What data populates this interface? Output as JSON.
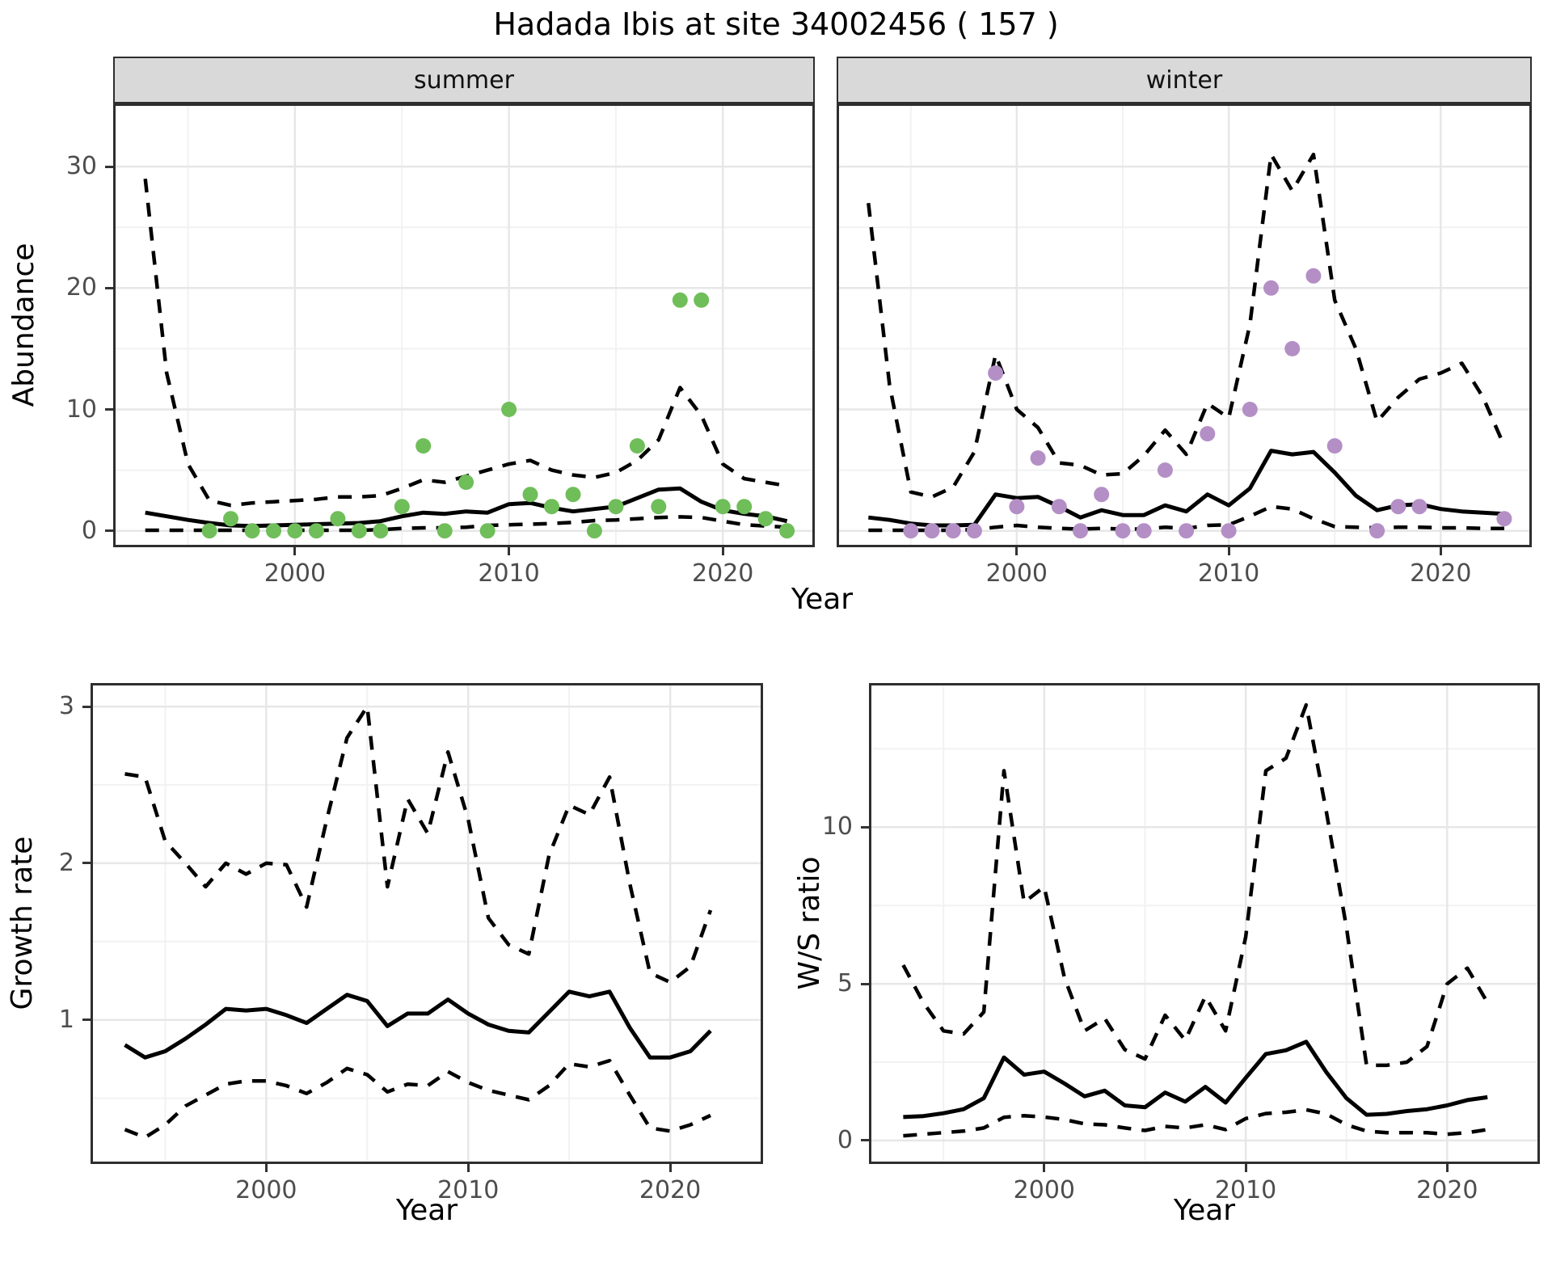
{
  "title": "Hadada Ibis at site 34002456 ( 157 )",
  "facets": [
    {
      "label": "summer"
    },
    {
      "label": "winter"
    }
  ],
  "axes": {
    "abundance_ylabel": "Abundance",
    "top_xlabel": "Year",
    "growth_ylabel": "Growth rate",
    "growth_xlabel": "Year",
    "ws_ylabel": "W/S ratio",
    "ws_xlabel": "Year"
  },
  "colors": {
    "summer_point": "#6FBE5A",
    "winter_point": "#B48FC6",
    "line": "#000000",
    "grid_major": "#E7E7E7",
    "grid_minor": "#F2F2F2",
    "strip_bg": "#D9D9D9",
    "panel_border": "#2E2E2E",
    "tick_text": "#4D4D4D"
  },
  "chart_data": [
    {
      "id": "abundance-summer",
      "type": "line",
      "facet": "summer",
      "xlabel": "Year",
      "ylabel": "Abundance",
      "xlim": [
        1991.5,
        2024.3
      ],
      "ylim": [
        -1.35,
        35.2
      ],
      "xticks": [
        2000,
        2010,
        2020
      ],
      "yticks": [
        0,
        10,
        20,
        30
      ],
      "xminor": [
        1995,
        2005,
        2015
      ],
      "yminor": [
        5,
        15,
        25
      ],
      "x": [
        1993,
        1994,
        1995,
        1996,
        1997,
        1998,
        1999,
        2000,
        2001,
        2002,
        2003,
        2004,
        2005,
        2006,
        2007,
        2008,
        2009,
        2010,
        2011,
        2012,
        2013,
        2014,
        2015,
        2016,
        2017,
        2018,
        2019,
        2020,
        2021,
        2022,
        2023
      ],
      "series": [
        {
          "name": "fit",
          "style": "solid",
          "values": [
            1.5,
            1.2,
            0.9,
            0.65,
            0.45,
            0.4,
            0.45,
            0.5,
            0.55,
            0.6,
            0.65,
            0.8,
            1.2,
            1.5,
            1.4,
            1.6,
            1.5,
            2.2,
            2.3,
            1.9,
            1.6,
            1.8,
            2.0,
            2.7,
            3.4,
            3.5,
            2.4,
            1.7,
            1.4,
            1.2,
            0.8
          ]
        },
        {
          "name": "upper_ci",
          "style": "dashed",
          "values": [
            29,
            13,
            5.5,
            2.5,
            2.1,
            2.3,
            2.4,
            2.5,
            2.6,
            2.8,
            2.8,
            2.9,
            3.5,
            4.2,
            4.0,
            4.5,
            5.0,
            5.5,
            5.8,
            5.0,
            4.6,
            4.4,
            4.8,
            5.8,
            7.5,
            11.8,
            9.5,
            5.5,
            4.3,
            4.0,
            3.7
          ]
        },
        {
          "name": "lower_ci",
          "style": "dashed",
          "values": [
            0.05,
            0.05,
            0.05,
            0.05,
            0.05,
            0.05,
            0.05,
            0.05,
            0.05,
            0.05,
            0.05,
            0.1,
            0.2,
            0.25,
            0.25,
            0.3,
            0.45,
            0.5,
            0.55,
            0.6,
            0.7,
            0.85,
            0.9,
            1.0,
            1.1,
            1.15,
            1.1,
            0.8,
            0.5,
            0.4,
            0.3
          ]
        }
      ],
      "points": [
        [
          1996,
          0
        ],
        [
          1997,
          1
        ],
        [
          1998,
          0
        ],
        [
          1999,
          0
        ],
        [
          2000,
          0
        ],
        [
          2001,
          0
        ],
        [
          2002,
          1
        ],
        [
          2003,
          0
        ],
        [
          2004,
          0
        ],
        [
          2005,
          2
        ],
        [
          2006,
          7
        ],
        [
          2007,
          0
        ],
        [
          2008,
          4
        ],
        [
          2009,
          0
        ],
        [
          2010,
          10
        ],
        [
          2011,
          3
        ],
        [
          2012,
          2
        ],
        [
          2013,
          3
        ],
        [
          2014,
          0
        ],
        [
          2015,
          2
        ],
        [
          2016,
          7
        ],
        [
          2017,
          2
        ],
        [
          2018,
          19
        ],
        [
          2019,
          19
        ],
        [
          2020,
          2
        ],
        [
          2021,
          2
        ],
        [
          2022,
          1
        ],
        [
          2023,
          0
        ]
      ],
      "point_color": "#6FBE5A"
    },
    {
      "id": "abundance-winter",
      "type": "line",
      "facet": "winter",
      "xlabel": "Year",
      "ylabel": "Abundance",
      "xlim": [
        1991.5,
        2024.3
      ],
      "ylim": [
        -1.35,
        35.2
      ],
      "xticks": [
        2000,
        2010,
        2020
      ],
      "yticks": [
        0,
        10,
        20,
        30
      ],
      "xminor": [
        1995,
        2005,
        2015
      ],
      "yminor": [
        5,
        15,
        25
      ],
      "x": [
        1993,
        1994,
        1995,
        1996,
        1997,
        1998,
        1999,
        2000,
        2001,
        2002,
        2003,
        2004,
        2005,
        2006,
        2007,
        2008,
        2009,
        2010,
        2011,
        2012,
        2013,
        2014,
        2015,
        2016,
        2017,
        2018,
        2019,
        2020,
        2021,
        2022,
        2023
      ],
      "series": [
        {
          "name": "fit",
          "style": "solid",
          "values": [
            1.1,
            0.9,
            0.6,
            0.45,
            0.45,
            0.5,
            3.0,
            2.7,
            2.8,
            2.0,
            1.1,
            1.7,
            1.3,
            1.3,
            2.1,
            1.6,
            3.0,
            2.1,
            3.5,
            6.6,
            6.3,
            6.5,
            4.8,
            2.9,
            1.7,
            2.1,
            2.2,
            1.8,
            1.6,
            1.5,
            1.4
          ]
        },
        {
          "name": "upper_ci",
          "style": "dashed",
          "values": [
            27,
            12,
            3.2,
            2.8,
            3.6,
            6.5,
            14.5,
            10,
            8.5,
            5.6,
            5.4,
            4.6,
            4.7,
            6.2,
            8.3,
            6.3,
            10.5,
            9.3,
            17,
            31,
            28,
            31,
            19,
            15,
            9,
            11,
            12.5,
            13,
            13.8,
            11,
            7
          ]
        },
        {
          "name": "lower_ci",
          "style": "dashed",
          "values": [
            0.05,
            0.05,
            0.05,
            0.05,
            0.05,
            0.1,
            0.3,
            0.45,
            0.3,
            0.2,
            0.15,
            0.2,
            0.15,
            0.15,
            0.3,
            0.2,
            0.45,
            0.5,
            1.2,
            2.0,
            1.8,
            1.0,
            0.35,
            0.3,
            0.25,
            0.3,
            0.3,
            0.25,
            0.25,
            0.2,
            0.2
          ]
        }
      ],
      "points": [
        [
          1995,
          0
        ],
        [
          1996,
          0
        ],
        [
          1997,
          0
        ],
        [
          1998,
          0
        ],
        [
          1999,
          13
        ],
        [
          2000,
          2
        ],
        [
          2001,
          6
        ],
        [
          2002,
          2
        ],
        [
          2003,
          0
        ],
        [
          2004,
          3
        ],
        [
          2005,
          0
        ],
        [
          2006,
          0
        ],
        [
          2007,
          5
        ],
        [
          2008,
          0
        ],
        [
          2009,
          8
        ],
        [
          2010,
          0
        ],
        [
          2011,
          10
        ],
        [
          2012,
          20
        ],
        [
          2013,
          15
        ],
        [
          2014,
          21
        ],
        [
          2015,
          7
        ],
        [
          2017,
          0
        ],
        [
          2018,
          2
        ],
        [
          2019,
          2
        ],
        [
          2023,
          1
        ]
      ],
      "point_color": "#B48FC6"
    },
    {
      "id": "growth-rate",
      "type": "line",
      "facet": null,
      "xlabel": "Year",
      "ylabel": "Growth rate",
      "xlim": [
        1991.3,
        2024.6
      ],
      "ylim": [
        0.08,
        3.15
      ],
      "xticks": [
        2000,
        2010,
        2020
      ],
      "yticks": [
        1,
        2,
        3
      ],
      "xminor": [
        1995,
        2005,
        2015
      ],
      "yminor": [
        0.5,
        1.5,
        2.5
      ],
      "x": [
        1993,
        1994,
        1995,
        1996,
        1997,
        1998,
        1999,
        2000,
        2001,
        2002,
        2003,
        2004,
        2005,
        2006,
        2007,
        2008,
        2009,
        2010,
        2011,
        2012,
        2013,
        2014,
        2015,
        2016,
        2017,
        2018,
        2019,
        2020,
        2021,
        2022
      ],
      "series": [
        {
          "name": "fit",
          "style": "solid",
          "values": [
            0.84,
            0.76,
            0.8,
            0.88,
            0.97,
            1.07,
            1.06,
            1.07,
            1.03,
            0.98,
            1.07,
            1.16,
            1.12,
            0.96,
            1.04,
            1.04,
            1.13,
            1.04,
            0.97,
            0.93,
            0.92,
            1.05,
            1.18,
            1.15,
            1.18,
            0.95,
            0.76,
            0.76,
            0.8,
            0.93
          ]
        },
        {
          "name": "upper_ci",
          "style": "dashed",
          "values": [
            2.57,
            2.55,
            2.14,
            2.0,
            1.85,
            2.0,
            1.93,
            2.0,
            1.99,
            1.72,
            2.28,
            2.8,
            3.0,
            1.85,
            2.41,
            2.19,
            2.71,
            2.28,
            1.65,
            1.48,
            1.42,
            2.05,
            2.37,
            2.31,
            2.55,
            1.87,
            1.3,
            1.24,
            1.34,
            1.7
          ]
        },
        {
          "name": "lower_ci",
          "style": "dashed",
          "values": [
            0.3,
            0.25,
            0.33,
            0.45,
            0.52,
            0.59,
            0.61,
            0.61,
            0.58,
            0.53,
            0.6,
            0.69,
            0.65,
            0.54,
            0.59,
            0.58,
            0.67,
            0.6,
            0.55,
            0.52,
            0.49,
            0.58,
            0.72,
            0.7,
            0.74,
            0.52,
            0.31,
            0.29,
            0.33,
            0.39
          ]
        }
      ],
      "points": [],
      "point_color": null
    },
    {
      "id": "ws-ratio",
      "type": "line",
      "facet": null,
      "xlabel": "Year",
      "ylabel": "W/S ratio",
      "xlim": [
        1991.3,
        2024.6
      ],
      "ylim": [
        -0.75,
        14.6
      ],
      "xticks": [
        2000,
        2010,
        2020
      ],
      "yticks": [
        0,
        5,
        10
      ],
      "xminor": [
        1995,
        2005,
        2015
      ],
      "yminor": [
        2.5,
        7.5,
        12.5
      ],
      "x": [
        1993,
        1994,
        1995,
        1996,
        1997,
        1998,
        1999,
        2000,
        2001,
        2002,
        2003,
        2004,
        2005,
        2006,
        2007,
        2008,
        2009,
        2010,
        2011,
        2012,
        2013,
        2014,
        2015,
        2016,
        2017,
        2018,
        2019,
        2020,
        2021,
        2022
      ],
      "series": [
        {
          "name": "fit",
          "style": "solid",
          "values": [
            0.75,
            0.78,
            0.87,
            1.0,
            1.35,
            2.65,
            2.1,
            2.2,
            1.82,
            1.41,
            1.59,
            1.12,
            1.06,
            1.53,
            1.24,
            1.71,
            1.21,
            2.0,
            2.76,
            2.88,
            3.15,
            2.18,
            1.35,
            0.82,
            0.85,
            0.94,
            1.0,
            1.12,
            1.29,
            1.38
          ]
        },
        {
          "name": "upper_ci",
          "style": "dashed",
          "values": [
            5.6,
            4.4,
            3.5,
            3.4,
            4.1,
            11.8,
            7.6,
            8.1,
            5.2,
            3.5,
            3.9,
            2.9,
            2.6,
            4.0,
            3.2,
            4.6,
            3.5,
            6.5,
            11.8,
            12.2,
            13.9,
            10.5,
            6.8,
            2.4,
            2.4,
            2.5,
            3.0,
            5.0,
            5.5,
            4.4
          ]
        },
        {
          "name": "lower_ci",
          "style": "dashed",
          "values": [
            0.15,
            0.2,
            0.25,
            0.3,
            0.4,
            0.74,
            0.79,
            0.75,
            0.67,
            0.53,
            0.5,
            0.4,
            0.32,
            0.45,
            0.4,
            0.5,
            0.35,
            0.7,
            0.86,
            0.9,
            0.98,
            0.85,
            0.5,
            0.3,
            0.25,
            0.25,
            0.25,
            0.2,
            0.25,
            0.35
          ]
        }
      ],
      "points": [],
      "point_color": null
    }
  ]
}
